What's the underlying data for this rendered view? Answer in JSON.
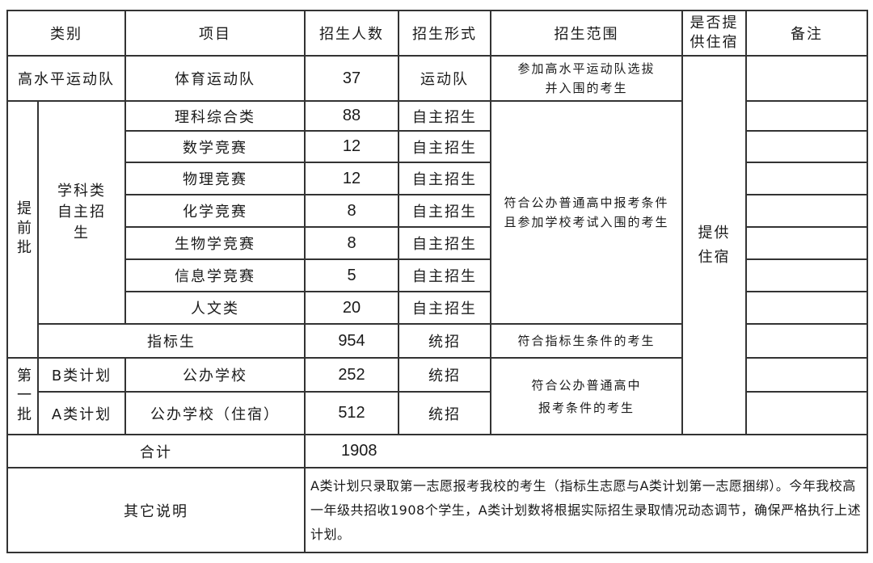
{
  "header": {
    "category": "类别",
    "item": "项目",
    "count": "招生人数",
    "form": "招生形式",
    "scope": "招生范围",
    "lodging": "是否提供住宿",
    "remarks": "备注"
  },
  "high_level": {
    "category": "高水平运动队",
    "item": "体育运动队",
    "count": "37",
    "form": "运动队",
    "scope": "参加高水平运动队选拔并入围的考生"
  },
  "early_batch": {
    "label": "提前批",
    "subject_group": "学科类自主招生",
    "subject_scope": "符合公办普通高中报考条件且参加学校考试入围的考生",
    "subjects": [
      {
        "item": "理科综合类",
        "count": "88",
        "form": "自主招生"
      },
      {
        "item": "数学竞赛",
        "count": "12",
        "form": "自主招生"
      },
      {
        "item": "物理竞赛",
        "count": "12",
        "form": "自主招生"
      },
      {
        "item": "化学竞赛",
        "count": "8",
        "form": "自主招生"
      },
      {
        "item": "生物学竞赛",
        "count": "8",
        "form": "自主招生"
      },
      {
        "item": "信息学竞赛",
        "count": "5",
        "form": "自主招生"
      },
      {
        "item": "人文类",
        "count": "20",
        "form": "自主招生"
      }
    ],
    "quota": {
      "item": "指标生",
      "count": "954",
      "form": "统招",
      "scope": "符合指标生条件的考生"
    }
  },
  "first_batch": {
    "label": "第一批",
    "scope": "符合公办普通高中报考条件的考生",
    "rows": [
      {
        "plan": "B类计划",
        "item": "公办学校",
        "count": "252",
        "form": "统招"
      },
      {
        "plan": "A类计划",
        "item": "公办学校（住宿）",
        "count": "512",
        "form": "统招"
      }
    ]
  },
  "lodging_value": "提供住宿",
  "total": {
    "label": "合计",
    "value": "1908"
  },
  "notes": {
    "label": "其它说明",
    "text": "A类计划只录取第一志愿报考我校的考生（指标生志愿与A类计划第一志愿捆绑）。今年我校高一年级共招收1908个学生，A类计划数将根据实际招生录取情况动态调节，确保严格执行上述计划。"
  }
}
